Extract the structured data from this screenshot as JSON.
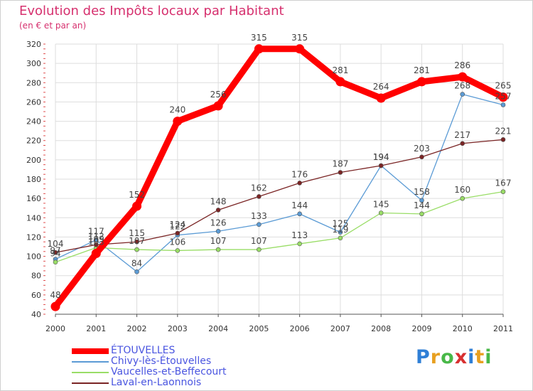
{
  "chart_data": {
    "type": "line",
    "title": "Evolution des Impôts locaux par Habitant",
    "subtitle": "(en € et par an)",
    "x": [
      "2000",
      "2001",
      "2002",
      "2003",
      "2004",
      "2005",
      "2006",
      "2007",
      "2008",
      "2009",
      "2010",
      "2011"
    ],
    "yticks": [
      40,
      60,
      80,
      100,
      120,
      140,
      160,
      180,
      200,
      220,
      240,
      260,
      280,
      300,
      320
    ],
    "ylim": [
      40,
      320
    ],
    "grid": true,
    "legend_position": "bottom-left",
    "series": [
      {
        "name": "Chivy-lès-Étouvelles",
        "color": "#5b9bd5",
        "values": [
          97,
          117,
          84,
          122,
          126,
          133,
          144,
          125,
          194,
          158,
          268,
          257
        ],
        "labels": [
          "97",
          "117",
          "84",
          "122",
          "126",
          "133",
          "144",
          "125",
          "194",
          "158",
          "268",
          "257"
        ]
      },
      {
        "name": "Vaucelles-et-Beffecourt",
        "color": "#99dd66",
        "values": [
          94,
          109,
          107,
          106,
          107,
          107,
          113,
          119,
          145,
          144,
          160,
          167
        ],
        "labels": [
          "94",
          "109",
          "107",
          "106",
          "107",
          "107",
          "113",
          "119",
          "145",
          "144",
          "160",
          "167"
        ]
      },
      {
        "name": "Laval-en-Laonnois",
        "color": "#7a2424",
        "values": [
          104,
          112,
          115,
          124,
          148,
          162,
          176,
          187,
          194,
          203,
          217,
          221
        ],
        "labels": [
          "104",
          "112",
          "115",
          "124",
          "148",
          "162",
          "176",
          "187",
          "194",
          "203",
          "217",
          "221"
        ]
      },
      {
        "name": "ÉTOUVELLES",
        "color": "#ff0000",
        "values": [
          48,
          103,
          152,
          240,
          256,
          315,
          315,
          281,
          264,
          281,
          286,
          265
        ],
        "labels": [
          "48",
          "103",
          "152",
          "240",
          "256",
          "315",
          "315",
          "281",
          "264",
          "281",
          "286",
          "265"
        ]
      }
    ]
  },
  "legend": {
    "items": [
      {
        "label": "ÉTOUVELLES",
        "color": "#ff0000"
      },
      {
        "label": "Chivy-lès-Étouvelles",
        "color": "#5b9bd5"
      },
      {
        "label": "Vaucelles-et-Beffecourt",
        "color": "#99dd66"
      },
      {
        "label": "Laval-en-Laonnois",
        "color": "#7a2424"
      }
    ]
  },
  "logo": {
    "letters": [
      "P",
      "r",
      "o",
      "x",
      "i",
      "t",
      "i"
    ],
    "colors": [
      "#2f7fd6",
      "#e8a020",
      "#48b848",
      "#d83030",
      "#2f7fd6",
      "#e8a020",
      "#48b848"
    ]
  }
}
